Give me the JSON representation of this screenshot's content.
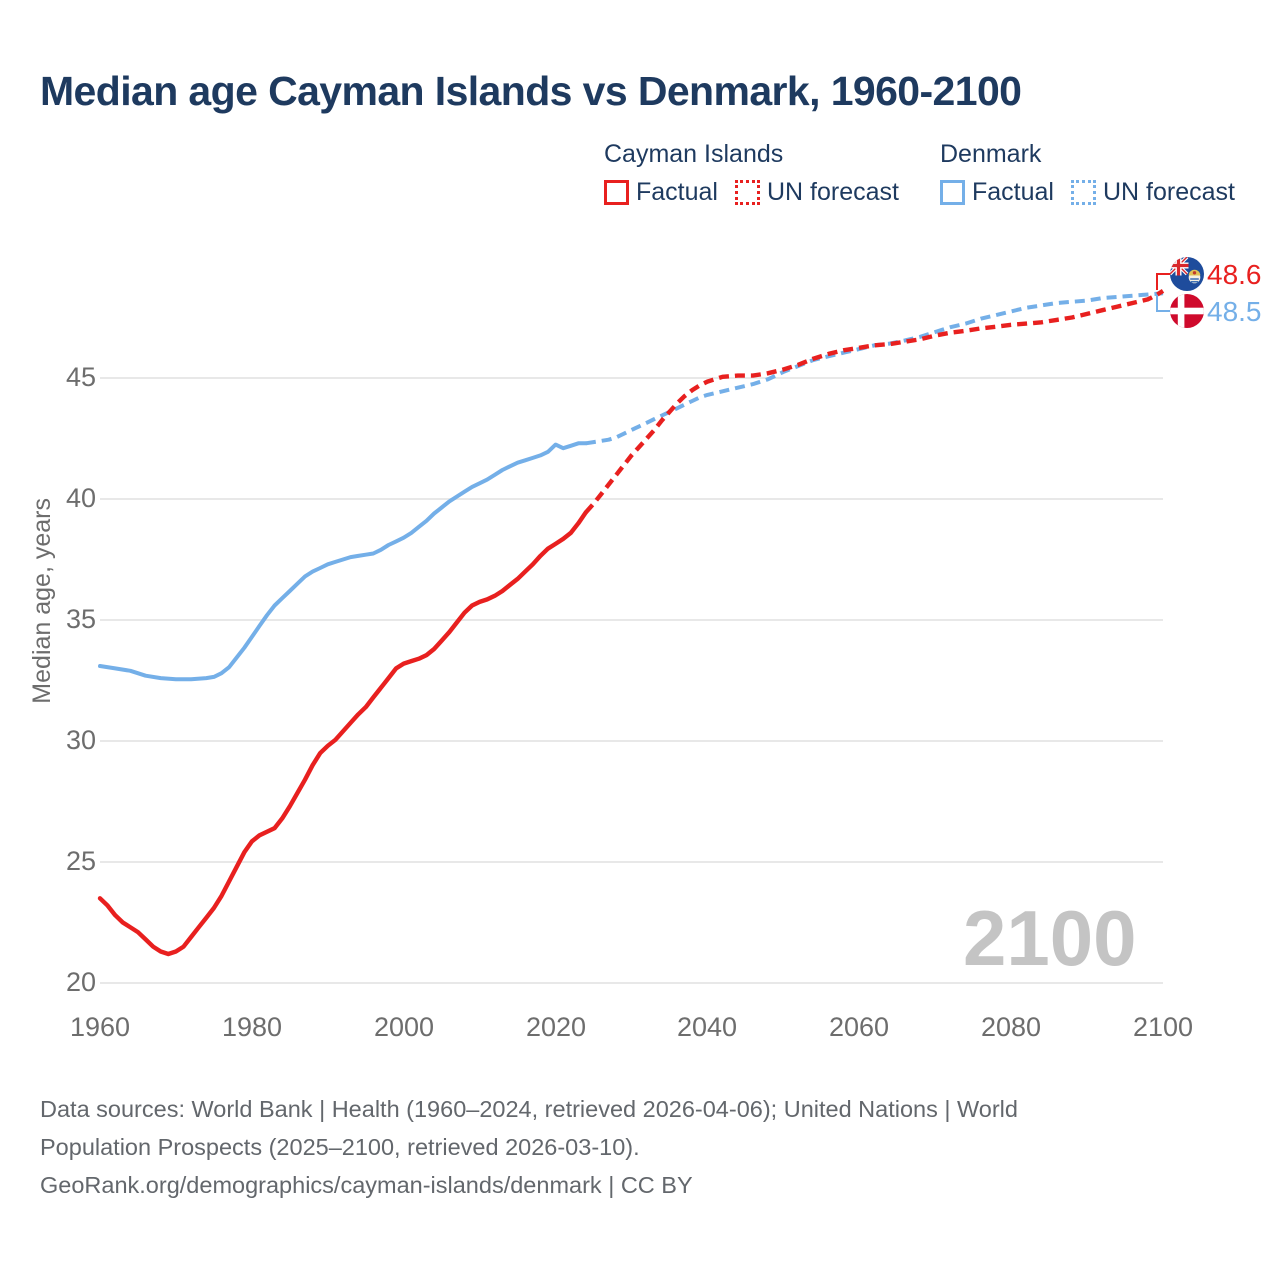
{
  "title": "Median age Cayman Islands vs Denmark, 1960-2100",
  "legend": {
    "groups": [
      {
        "name": "Cayman Islands",
        "color": "#e8201f",
        "items": [
          {
            "label": "Factual",
            "style": "solid"
          },
          {
            "label": "UN forecast",
            "style": "dashed"
          }
        ]
      },
      {
        "name": "Denmark",
        "color": "#74afe8",
        "items": [
          {
            "label": "Factual",
            "style": "solid"
          },
          {
            "label": "UN forecast",
            "style": "dashed"
          }
        ]
      }
    ]
  },
  "y_axis": {
    "label": "Median age, years",
    "ticks": [
      "45",
      "40",
      "35",
      "30",
      "25",
      "20"
    ]
  },
  "x_axis": {
    "ticks": [
      "1960",
      "1980",
      "2000",
      "2020",
      "2040",
      "2060",
      "2080",
      "2100"
    ]
  },
  "end_labels": [
    {
      "series": "Cayman Islands",
      "flag": "cayman-islands",
      "value": "48.6",
      "color": "#e8201f"
    },
    {
      "series": "Denmark",
      "flag": "denmark",
      "value": "48.5",
      "color": "#74afe8"
    }
  ],
  "watermark": "2100",
  "footer": {
    "lines": [
      "Data sources: World Bank | Health (1960–2024, retrieved 2026-04-06); United Nations | World",
      "Population Prospects (2025–2100, retrieved 2026-03-10).",
      "GeoRank.org/demographics/cayman-islands/denmark | CC BY"
    ]
  },
  "chart_data": {
    "type": "line",
    "title": "Median age Cayman Islands vs Denmark, 1960-2100",
    "xlabel": "",
    "ylabel": "Median age, years",
    "xlim": [
      1960,
      2100
    ],
    "ylim": [
      20,
      50
    ],
    "grid": "horizontal",
    "legend_position": "top",
    "series": [
      {
        "name": "Cayman Islands Factual",
        "color": "#e8201f",
        "style": "solid",
        "points": [
          [
            1960,
            23.5
          ],
          [
            1961,
            23.2
          ],
          [
            1962,
            22.8
          ],
          [
            1963,
            22.5
          ],
          [
            1964,
            22.3
          ],
          [
            1965,
            22.1
          ],
          [
            1966,
            21.8
          ],
          [
            1967,
            21.5
          ],
          [
            1968,
            21.3
          ],
          [
            1969,
            21.2
          ],
          [
            1970,
            21.3
          ],
          [
            1971,
            21.5
          ],
          [
            1972,
            21.9
          ],
          [
            1973,
            22.3
          ],
          [
            1974,
            22.7
          ],
          [
            1975,
            23.1
          ],
          [
            1976,
            23.6
          ],
          [
            1977,
            24.2
          ],
          [
            1978,
            24.8
          ],
          [
            1979,
            25.4
          ],
          [
            1980,
            25.85
          ],
          [
            1981,
            26.1
          ],
          [
            1982,
            26.25
          ],
          [
            1983,
            26.4
          ],
          [
            1984,
            26.8
          ],
          [
            1985,
            27.3
          ],
          [
            1986,
            27.85
          ],
          [
            1987,
            28.4
          ],
          [
            1988,
            29.0
          ],
          [
            1989,
            29.5
          ],
          [
            1990,
            29.8
          ],
          [
            1991,
            30.05
          ],
          [
            1992,
            30.4
          ],
          [
            1993,
            30.75
          ],
          [
            1994,
            31.1
          ],
          [
            1995,
            31.4
          ],
          [
            1996,
            31.8
          ],
          [
            1997,
            32.2
          ],
          [
            1998,
            32.6
          ],
          [
            1999,
            33.0
          ],
          [
            2000,
            33.2
          ],
          [
            2001,
            33.3
          ],
          [
            2002,
            33.4
          ],
          [
            2003,
            33.55
          ],
          [
            2004,
            33.8
          ],
          [
            2005,
            34.15
          ],
          [
            2006,
            34.5
          ],
          [
            2007,
            34.9
          ],
          [
            2008,
            35.3
          ],
          [
            2009,
            35.6
          ],
          [
            2010,
            35.75
          ],
          [
            2011,
            35.85
          ],
          [
            2012,
            36.0
          ],
          [
            2013,
            36.2
          ],
          [
            2014,
            36.45
          ],
          [
            2015,
            36.7
          ],
          [
            2016,
            37.0
          ],
          [
            2017,
            37.3
          ],
          [
            2018,
            37.65
          ],
          [
            2019,
            37.95
          ],
          [
            2020,
            38.15
          ],
          [
            2021,
            38.35
          ],
          [
            2022,
            38.6
          ],
          [
            2023,
            39.0
          ],
          [
            2024,
            39.45
          ]
        ]
      },
      {
        "name": "Cayman Islands UN forecast",
        "color": "#e8201f",
        "style": "dashed",
        "points": [
          [
            2024,
            39.45
          ],
          [
            2025,
            39.8
          ],
          [
            2026,
            40.2
          ],
          [
            2027,
            40.6
          ],
          [
            2028,
            41.0
          ],
          [
            2029,
            41.4
          ],
          [
            2030,
            41.8
          ],
          [
            2031,
            42.15
          ],
          [
            2032,
            42.5
          ],
          [
            2033,
            42.85
          ],
          [
            2034,
            43.25
          ],
          [
            2035,
            43.6
          ],
          [
            2036,
            43.95
          ],
          [
            2037,
            44.25
          ],
          [
            2038,
            44.5
          ],
          [
            2039,
            44.7
          ],
          [
            2040,
            44.85
          ],
          [
            2041,
            44.95
          ],
          [
            2042,
            45.05
          ],
          [
            2044,
            45.1
          ],
          [
            2046,
            45.1
          ],
          [
            2048,
            45.2
          ],
          [
            2050,
            45.35
          ],
          [
            2052,
            45.55
          ],
          [
            2054,
            45.8
          ],
          [
            2056,
            46.0
          ],
          [
            2058,
            46.15
          ],
          [
            2060,
            46.25
          ],
          [
            2062,
            46.35
          ],
          [
            2064,
            46.4
          ],
          [
            2066,
            46.5
          ],
          [
            2068,
            46.6
          ],
          [
            2070,
            46.75
          ],
          [
            2072,
            46.87
          ],
          [
            2074,
            46.95
          ],
          [
            2076,
            47.05
          ],
          [
            2078,
            47.12
          ],
          [
            2080,
            47.2
          ],
          [
            2082,
            47.25
          ],
          [
            2084,
            47.3
          ],
          [
            2086,
            47.4
          ],
          [
            2088,
            47.5
          ],
          [
            2090,
            47.65
          ],
          [
            2092,
            47.8
          ],
          [
            2094,
            47.95
          ],
          [
            2096,
            48.1
          ],
          [
            2098,
            48.25
          ],
          [
            2099,
            48.4
          ],
          [
            2100,
            48.6
          ]
        ]
      },
      {
        "name": "Denmark Factual",
        "color": "#74afe8",
        "style": "solid",
        "points": [
          [
            1960,
            33.1
          ],
          [
            1962,
            33.0
          ],
          [
            1964,
            32.9
          ],
          [
            1966,
            32.7
          ],
          [
            1968,
            32.6
          ],
          [
            1970,
            32.55
          ],
          [
            1972,
            32.55
          ],
          [
            1974,
            32.6
          ],
          [
            1975,
            32.65
          ],
          [
            1976,
            32.8
          ],
          [
            1977,
            33.05
          ],
          [
            1978,
            33.45
          ],
          [
            1979,
            33.85
          ],
          [
            1980,
            34.3
          ],
          [
            1981,
            34.75
          ],
          [
            1982,
            35.2
          ],
          [
            1983,
            35.6
          ],
          [
            1984,
            35.9
          ],
          [
            1985,
            36.2
          ],
          [
            1986,
            36.5
          ],
          [
            1987,
            36.8
          ],
          [
            1988,
            37.0
          ],
          [
            1989,
            37.15
          ],
          [
            1990,
            37.3
          ],
          [
            1991,
            37.4
          ],
          [
            1992,
            37.5
          ],
          [
            1993,
            37.6
          ],
          [
            1994,
            37.65
          ],
          [
            1995,
            37.7
          ],
          [
            1996,
            37.75
          ],
          [
            1997,
            37.9
          ],
          [
            1998,
            38.1
          ],
          [
            1999,
            38.25
          ],
          [
            2000,
            38.4
          ],
          [
            2001,
            38.6
          ],
          [
            2002,
            38.85
          ],
          [
            2003,
            39.1
          ],
          [
            2004,
            39.4
          ],
          [
            2005,
            39.65
          ],
          [
            2006,
            39.9
          ],
          [
            2007,
            40.1
          ],
          [
            2008,
            40.3
          ],
          [
            2009,
            40.5
          ],
          [
            2010,
            40.65
          ],
          [
            2011,
            40.8
          ],
          [
            2012,
            41.0
          ],
          [
            2013,
            41.2
          ],
          [
            2014,
            41.35
          ],
          [
            2015,
            41.5
          ],
          [
            2016,
            41.6
          ],
          [
            2017,
            41.7
          ],
          [
            2018,
            41.8
          ],
          [
            2019,
            41.95
          ],
          [
            2020,
            42.25
          ],
          [
            2021,
            42.1
          ],
          [
            2022,
            42.2
          ],
          [
            2023,
            42.3
          ],
          [
            2024,
            42.3
          ]
        ]
      },
      {
        "name": "Denmark UN forecast",
        "color": "#74afe8",
        "style": "dashed",
        "points": [
          [
            2024,
            42.3
          ],
          [
            2025,
            42.35
          ],
          [
            2026,
            42.4
          ],
          [
            2027,
            42.45
          ],
          [
            2028,
            42.55
          ],
          [
            2029,
            42.7
          ],
          [
            2030,
            42.85
          ],
          [
            2031,
            43.0
          ],
          [
            2032,
            43.15
          ],
          [
            2033,
            43.3
          ],
          [
            2034,
            43.45
          ],
          [
            2035,
            43.6
          ],
          [
            2036,
            43.75
          ],
          [
            2037,
            43.9
          ],
          [
            2038,
            44.05
          ],
          [
            2039,
            44.2
          ],
          [
            2040,
            44.3
          ],
          [
            2042,
            44.45
          ],
          [
            2044,
            44.6
          ],
          [
            2046,
            44.75
          ],
          [
            2048,
            44.95
          ],
          [
            2050,
            45.25
          ],
          [
            2052,
            45.5
          ],
          [
            2054,
            45.75
          ],
          [
            2056,
            45.9
          ],
          [
            2058,
            46.05
          ],
          [
            2060,
            46.2
          ],
          [
            2062,
            46.35
          ],
          [
            2064,
            46.42
          ],
          [
            2066,
            46.55
          ],
          [
            2068,
            46.7
          ],
          [
            2070,
            46.9
          ],
          [
            2072,
            47.1
          ],
          [
            2074,
            47.25
          ],
          [
            2076,
            47.45
          ],
          [
            2078,
            47.6
          ],
          [
            2080,
            47.75
          ],
          [
            2082,
            47.9
          ],
          [
            2084,
            48.0
          ],
          [
            2086,
            48.1
          ],
          [
            2088,
            48.15
          ],
          [
            2090,
            48.2
          ],
          [
            2092,
            48.3
          ],
          [
            2094,
            48.35
          ],
          [
            2096,
            48.4
          ],
          [
            2098,
            48.45
          ],
          [
            2100,
            48.5
          ]
        ]
      }
    ],
    "end_annotations": [
      {
        "series": "Cayman Islands",
        "year": 2100,
        "value": 48.6
      },
      {
        "series": "Denmark",
        "year": 2100,
        "value": 48.5
      }
    ]
  }
}
